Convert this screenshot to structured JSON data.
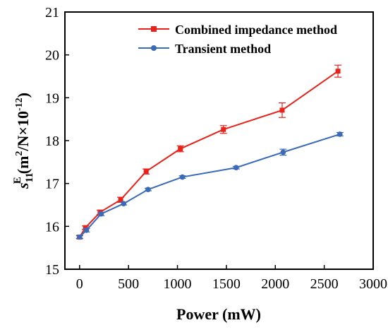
{
  "chart_data": {
    "type": "line",
    "xlabel": "Power (mW)",
    "ylabel": {
      "symbol": "s",
      "subscript": "11",
      "superscript": "E",
      "unit": "(m",
      "unit_sup": "2",
      "unit_mid": "/N×10",
      "unit_exp": "-12",
      "unit_end": ")"
    },
    "xlim": [
      -150,
      3000
    ],
    "ylim": [
      15,
      21
    ],
    "x_ticks": [
      0,
      500,
      1000,
      1500,
      2000,
      2500,
      3000
    ],
    "y_ticks": [
      15,
      16,
      17,
      18,
      19,
      20,
      21
    ],
    "grid": false,
    "legend_position": "top-right",
    "series": [
      {
        "name": "Combined impedance method",
        "color": "#e8231c",
        "marker": "square",
        "points": [
          {
            "x": 0,
            "y": 15.75,
            "err": 0.04
          },
          {
            "x": 60,
            "y": 15.97,
            "err": 0.04
          },
          {
            "x": 210,
            "y": 16.33,
            "err": 0.05
          },
          {
            "x": 420,
            "y": 16.62,
            "err": 0.06
          },
          {
            "x": 680,
            "y": 17.28,
            "err": 0.06
          },
          {
            "x": 1030,
            "y": 17.81,
            "err": 0.07
          },
          {
            "x": 1470,
            "y": 18.26,
            "err": 0.09
          },
          {
            "x": 2070,
            "y": 18.71,
            "err": 0.17
          },
          {
            "x": 2640,
            "y": 19.62,
            "err": 0.14
          }
        ]
      },
      {
        "name": "Transient method",
        "color": "#3a6ab8",
        "marker": "circle",
        "points": [
          {
            "x": 0,
            "y": 15.75,
            "err": 0.03
          },
          {
            "x": 70,
            "y": 15.91,
            "err": 0.04
          },
          {
            "x": 220,
            "y": 16.29,
            "err": 0.04
          },
          {
            "x": 450,
            "y": 16.53,
            "err": 0.03
          },
          {
            "x": 700,
            "y": 16.86,
            "err": 0.03
          },
          {
            "x": 1050,
            "y": 17.15,
            "err": 0.03
          },
          {
            "x": 1600,
            "y": 17.37,
            "err": 0.03
          },
          {
            "x": 2080,
            "y": 17.73,
            "err": 0.07
          },
          {
            "x": 2660,
            "y": 18.15,
            "err": 0.04
          }
        ]
      }
    ]
  }
}
